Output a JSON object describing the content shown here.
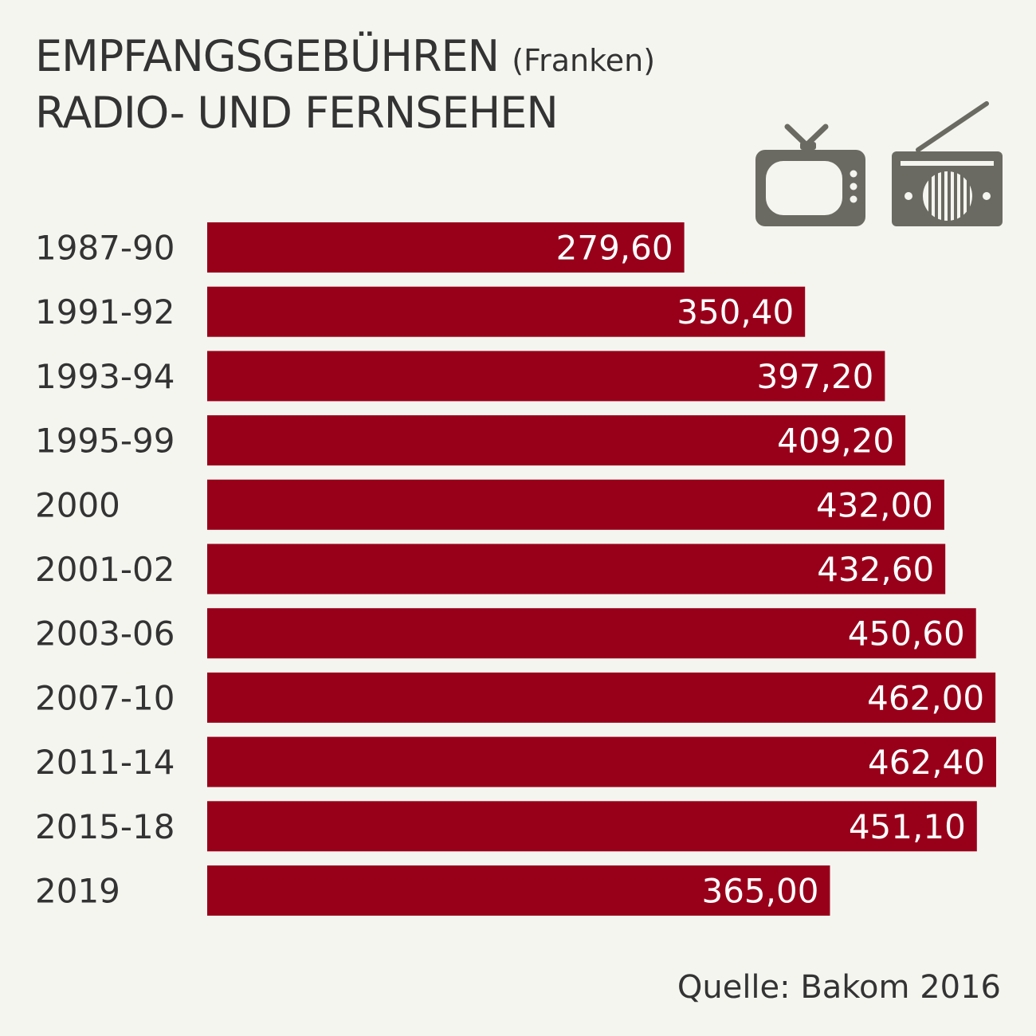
{
  "title": {
    "line1": "EMPFANGSGEBÜHREN",
    "unit": "(Franken)",
    "line2": "RADIO- UND FERNSEHEN"
  },
  "icons": [
    "tv-icon",
    "radio-icon"
  ],
  "source": "Quelle: Bakom 2016",
  "colors": {
    "bar": "#98001a",
    "icon": "#6b6a62",
    "background": "#f5f5f0",
    "text": "#333333"
  },
  "chart_data": {
    "type": "bar",
    "orientation": "horizontal",
    "categories": [
      "1987-90",
      "1991-92",
      "1993-94",
      "1995-99",
      "2000",
      "2001-02",
      "2003-06",
      "2007-10",
      "2011-14",
      "2015-18",
      "2019"
    ],
    "values": [
      279.6,
      350.4,
      397.2,
      409.2,
      432.0,
      432.6,
      450.6,
      462.0,
      462.4,
      451.1,
      365.0
    ],
    "value_labels": [
      "279,60",
      "350,40",
      "397,20",
      "409,20",
      "432,00",
      "432,60",
      "450,60",
      "462,00",
      "462,40",
      "451,10",
      "365,00"
    ],
    "xlim": [
      0,
      462.4
    ],
    "grid": false,
    "legend": "none"
  }
}
